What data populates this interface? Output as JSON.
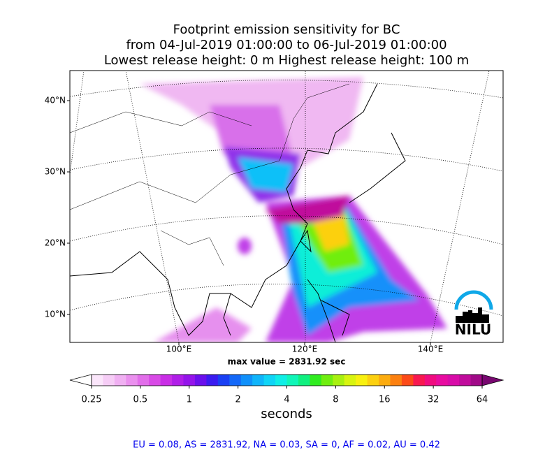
{
  "map": {
    "title": [
      "Footprint emission sensitivity for BC",
      "from 04-Jul-2019 01:00:00 to 06-Jul-2019 01:00:00",
      "Lowest release height: 0 m      Highest release height: 100 m"
    ],
    "lat_ticks": [
      {
        "value": 40,
        "label": "40°N"
      },
      {
        "value": 30,
        "label": "30°N"
      },
      {
        "value": 20,
        "label": "20°N"
      },
      {
        "value": 10,
        "label": "10°N"
      }
    ],
    "lon_ticks": [
      {
        "value": 100,
        "label": "100°E"
      },
      {
        "value": 120,
        "label": "120°E"
      },
      {
        "value": 140,
        "label": "140°E"
      }
    ],
    "max_value": "max value = 2831.92 sec",
    "logo": "NILU",
    "colorbar": {
      "ticks": [
        0.25,
        0.5,
        1,
        2,
        4,
        8,
        16,
        32,
        64
      ],
      "log_scale": true,
      "label": "seconds",
      "colors": [
        "#ffffff",
        "#fbe6fb",
        "#f6cdf6",
        "#f0b0f2",
        "#ea90ee",
        "#e26eea",
        "#d84ae6",
        "#c92ee6",
        "#b01ee8",
        "#9414ea",
        "#6a10ec",
        "#3a1cf0",
        "#1a40f4",
        "#1468f8",
        "#1090fa",
        "#10b4fa",
        "#10d4f6",
        "#10eee6",
        "#10f6b8",
        "#10f080",
        "#30ec20",
        "#70ee10",
        "#a8f010",
        "#d8f410",
        "#f8f010",
        "#fcd010",
        "#fcac10",
        "#fc8010",
        "#fc4a18",
        "#f81850",
        "#f00c80",
        "#e80ca0",
        "#d80ca8",
        "#c00c9c",
        "#a00a88",
        "#780870"
      ]
    },
    "footer": "EU = 0.08,  AS = 2831.92,  NA = 0.03,  SA = 0,  AF = 0.02,  AU = 0.42"
  }
}
